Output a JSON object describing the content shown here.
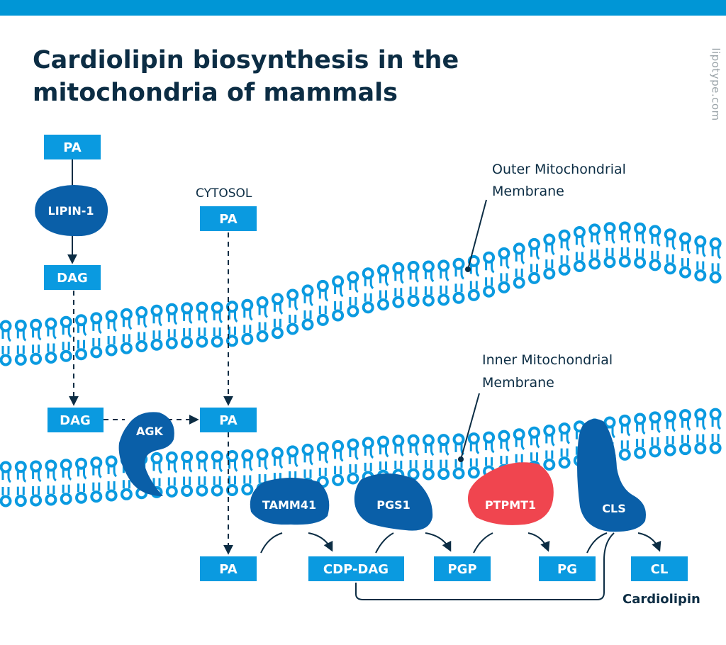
{
  "title": "Cardiolipin biosynthesis in the mitochondria of mammals",
  "brand": "lipotype.com",
  "labels": {
    "cytosol": "CYTOSOL",
    "outer_1": "Outer Mitochondrial",
    "outer_2": "Membrane",
    "inner_1": "Inner Mitochondrial",
    "inner_2": "Membrane",
    "cardiolipin": "Cardiolipin"
  },
  "boxes": {
    "pa_top": "PA",
    "dag_1": "DAG",
    "pa_cytosol": "PA",
    "dag_2": "DAG",
    "pa_mid": "PA",
    "pa_bottom": "PA",
    "cdp_dag": "CDP-DAG",
    "pgp": "PGP",
    "pg": "PG",
    "cl": "CL"
  },
  "enzymes": {
    "lipin1": "LIPIN-1",
    "agk": "AGK",
    "tamm41": "TAMM41",
    "pgs1": "PGS1",
    "ptpmt1": "PTPMT1",
    "cls": "CLS"
  },
  "colors": {
    "bar": "#0096d6",
    "box": "#0a9ae0",
    "enzyme": "#0a5fa8",
    "ptpmt1": "#f0454f",
    "lipid": "#0a9ae0",
    "text": "#0c2d44"
  }
}
